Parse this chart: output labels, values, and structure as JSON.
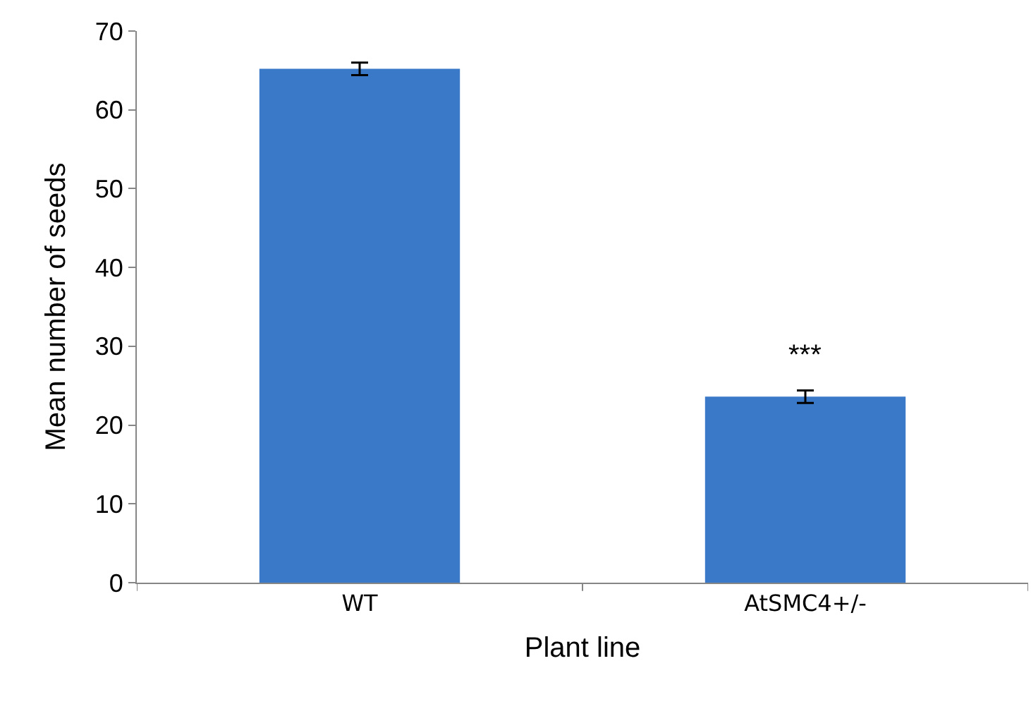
{
  "chart_data": {
    "type": "bar",
    "xlabel": "Plant line",
    "ylabel": "Mean number of seeds",
    "categories": [
      "WT",
      "AtSMC4+/-"
    ],
    "values": [
      65.2,
      23.6
    ],
    "errors": [
      0.8,
      0.8
    ],
    "color": "#3a78c8",
    "ylim": [
      0,
      70
    ],
    "yticks": [
      0,
      10,
      20,
      30,
      40,
      50,
      60,
      70
    ],
    "annotations": [
      "***"
    ]
  }
}
